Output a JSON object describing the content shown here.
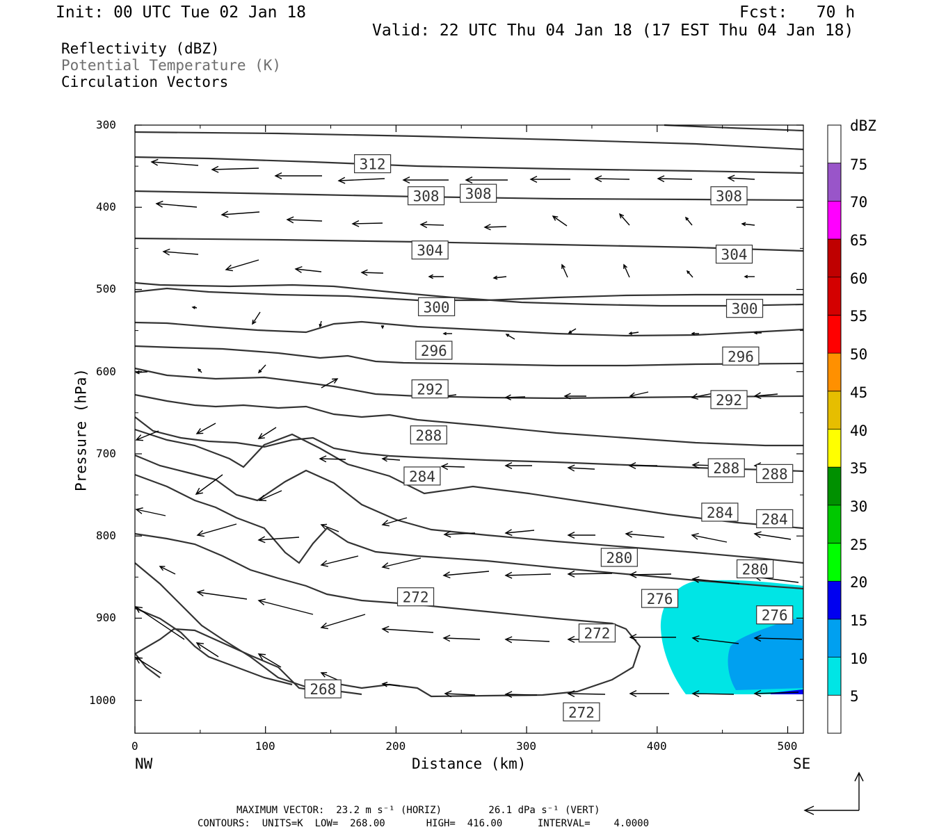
{
  "header": {
    "init": "Init: 00 UTC Tue 02 Jan 18",
    "fcst": "Fcst:   70 h",
    "valid": "Valid: 22 UTC Thu 04 Jan 18 (17 EST Thu 04 Jan 18)",
    "fields": [
      "Reflectivity (dBZ)",
      "Potential Temperature (K)",
      "Circulation Vectors"
    ]
  },
  "footer": {
    "max_vector": "MAXIMUM VECTOR:  23.2 m s⁻¹ (HORIZ)        26.1 dPa s⁻¹ (VERT)",
    "contours": "CONTOURS:  UNITS=K  LOW=  268.00       HIGH=  416.00      INTERVAL=    4.0000"
  },
  "colors": {
    "contour": "#333333",
    "dbz": [
      "#ffffff",
      "#00e5e5",
      "#00a0f0",
      "#0000f0",
      "#00ff00",
      "#00c800",
      "#009000",
      "#ffff00",
      "#e6be00",
      "#ff9000",
      "#ff0000",
      "#d40000",
      "#bf0000",
      "#ff00ff",
      "#9955c9",
      "#ffffff"
    ]
  },
  "chart_data": {
    "type": "contour",
    "xlabel": "Distance (km)",
    "ylabel": "Pressure (hPa)",
    "xlim": [
      0,
      512
    ],
    "ylim": [
      1040,
      300
    ],
    "x_ticks": [
      0,
      100,
      200,
      300,
      400,
      500
    ],
    "y_ticks": [
      300,
      400,
      500,
      600,
      700,
      800,
      900,
      1000
    ],
    "x_end_labels": {
      "left": "NW",
      "right": "SE"
    },
    "colorbar": {
      "unit": "dBZ",
      "levels": [
        5,
        10,
        15,
        20,
        25,
        30,
        35,
        40,
        45,
        50,
        55,
        60,
        65,
        70,
        75
      ]
    },
    "contour_labels": [
      {
        "text": "312",
        "x": 182,
        "p": 347
      },
      {
        "text": "308",
        "x": 223,
        "p": 386
      },
      {
        "text": "308",
        "x": 263,
        "p": 383
      },
      {
        "text": "308",
        "x": 455,
        "p": 386
      },
      {
        "text": "304",
        "x": 226,
        "p": 452
      },
      {
        "text": "304",
        "x": 459,
        "p": 457
      },
      {
        "text": "300",
        "x": 231,
        "p": 521
      },
      {
        "text": "300",
        "x": 467,
        "p": 523
      },
      {
        "text": "296",
        "x": 229,
        "p": 574
      },
      {
        "text": "296",
        "x": 464,
        "p": 581
      },
      {
        "text": "292",
        "x": 226,
        "p": 621
      },
      {
        "text": "292",
        "x": 455,
        "p": 634
      },
      {
        "text": "288",
        "x": 225,
        "p": 677
      },
      {
        "text": "288",
        "x": 453,
        "p": 717
      },
      {
        "text": "288",
        "x": 490,
        "p": 724
      },
      {
        "text": "284",
        "x": 220,
        "p": 727
      },
      {
        "text": "284",
        "x": 448,
        "p": 771
      },
      {
        "text": "284",
        "x": 490,
        "p": 779
      },
      {
        "text": "280",
        "x": 371,
        "p": 826
      },
      {
        "text": "280",
        "x": 475,
        "p": 840
      },
      {
        "text": "276",
        "x": 402,
        "p": 876
      },
      {
        "text": "276",
        "x": 490,
        "p": 896
      },
      {
        "text": "272",
        "x": 215,
        "p": 874
      },
      {
        "text": "272",
        "x": 354,
        "p": 918
      },
      {
        "text": "272",
        "x": 342,
        "p": 1014
      },
      {
        "text": "268",
        "x": 144,
        "p": 986
      }
    ]
  }
}
